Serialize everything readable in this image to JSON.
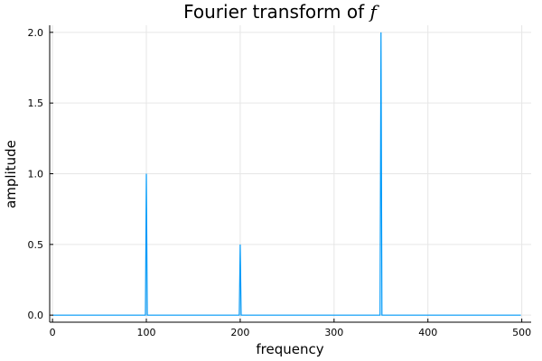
{
  "chart_data": {
    "type": "line",
    "title": "Fourier transform of ",
    "title_var": "f",
    "xlabel": "frequency",
    "ylabel": "amplitude",
    "xlim": [
      -3,
      510
    ],
    "ylim": [
      -0.05,
      2.05
    ],
    "x_ticks": [
      0,
      100,
      200,
      300,
      400,
      500
    ],
    "x_tick_labels": [
      "0",
      "100",
      "200",
      "300",
      "400",
      "500"
    ],
    "y_ticks": [
      0,
      0.5,
      1,
      1.5,
      2
    ],
    "y_tick_labels": [
      "0.0",
      "0.5",
      "1.0",
      "1.5",
      "2.0"
    ],
    "grid": true,
    "legend": "none",
    "series": [
      {
        "color": "#009af9",
        "x": [
          0,
          99,
          100,
          101,
          199,
          200,
          201,
          349,
          350,
          351,
          499
        ],
        "y": [
          0,
          0,
          1.0,
          0,
          0,
          0.5,
          0,
          0,
          2.0,
          0,
          0
        ]
      }
    ]
  }
}
